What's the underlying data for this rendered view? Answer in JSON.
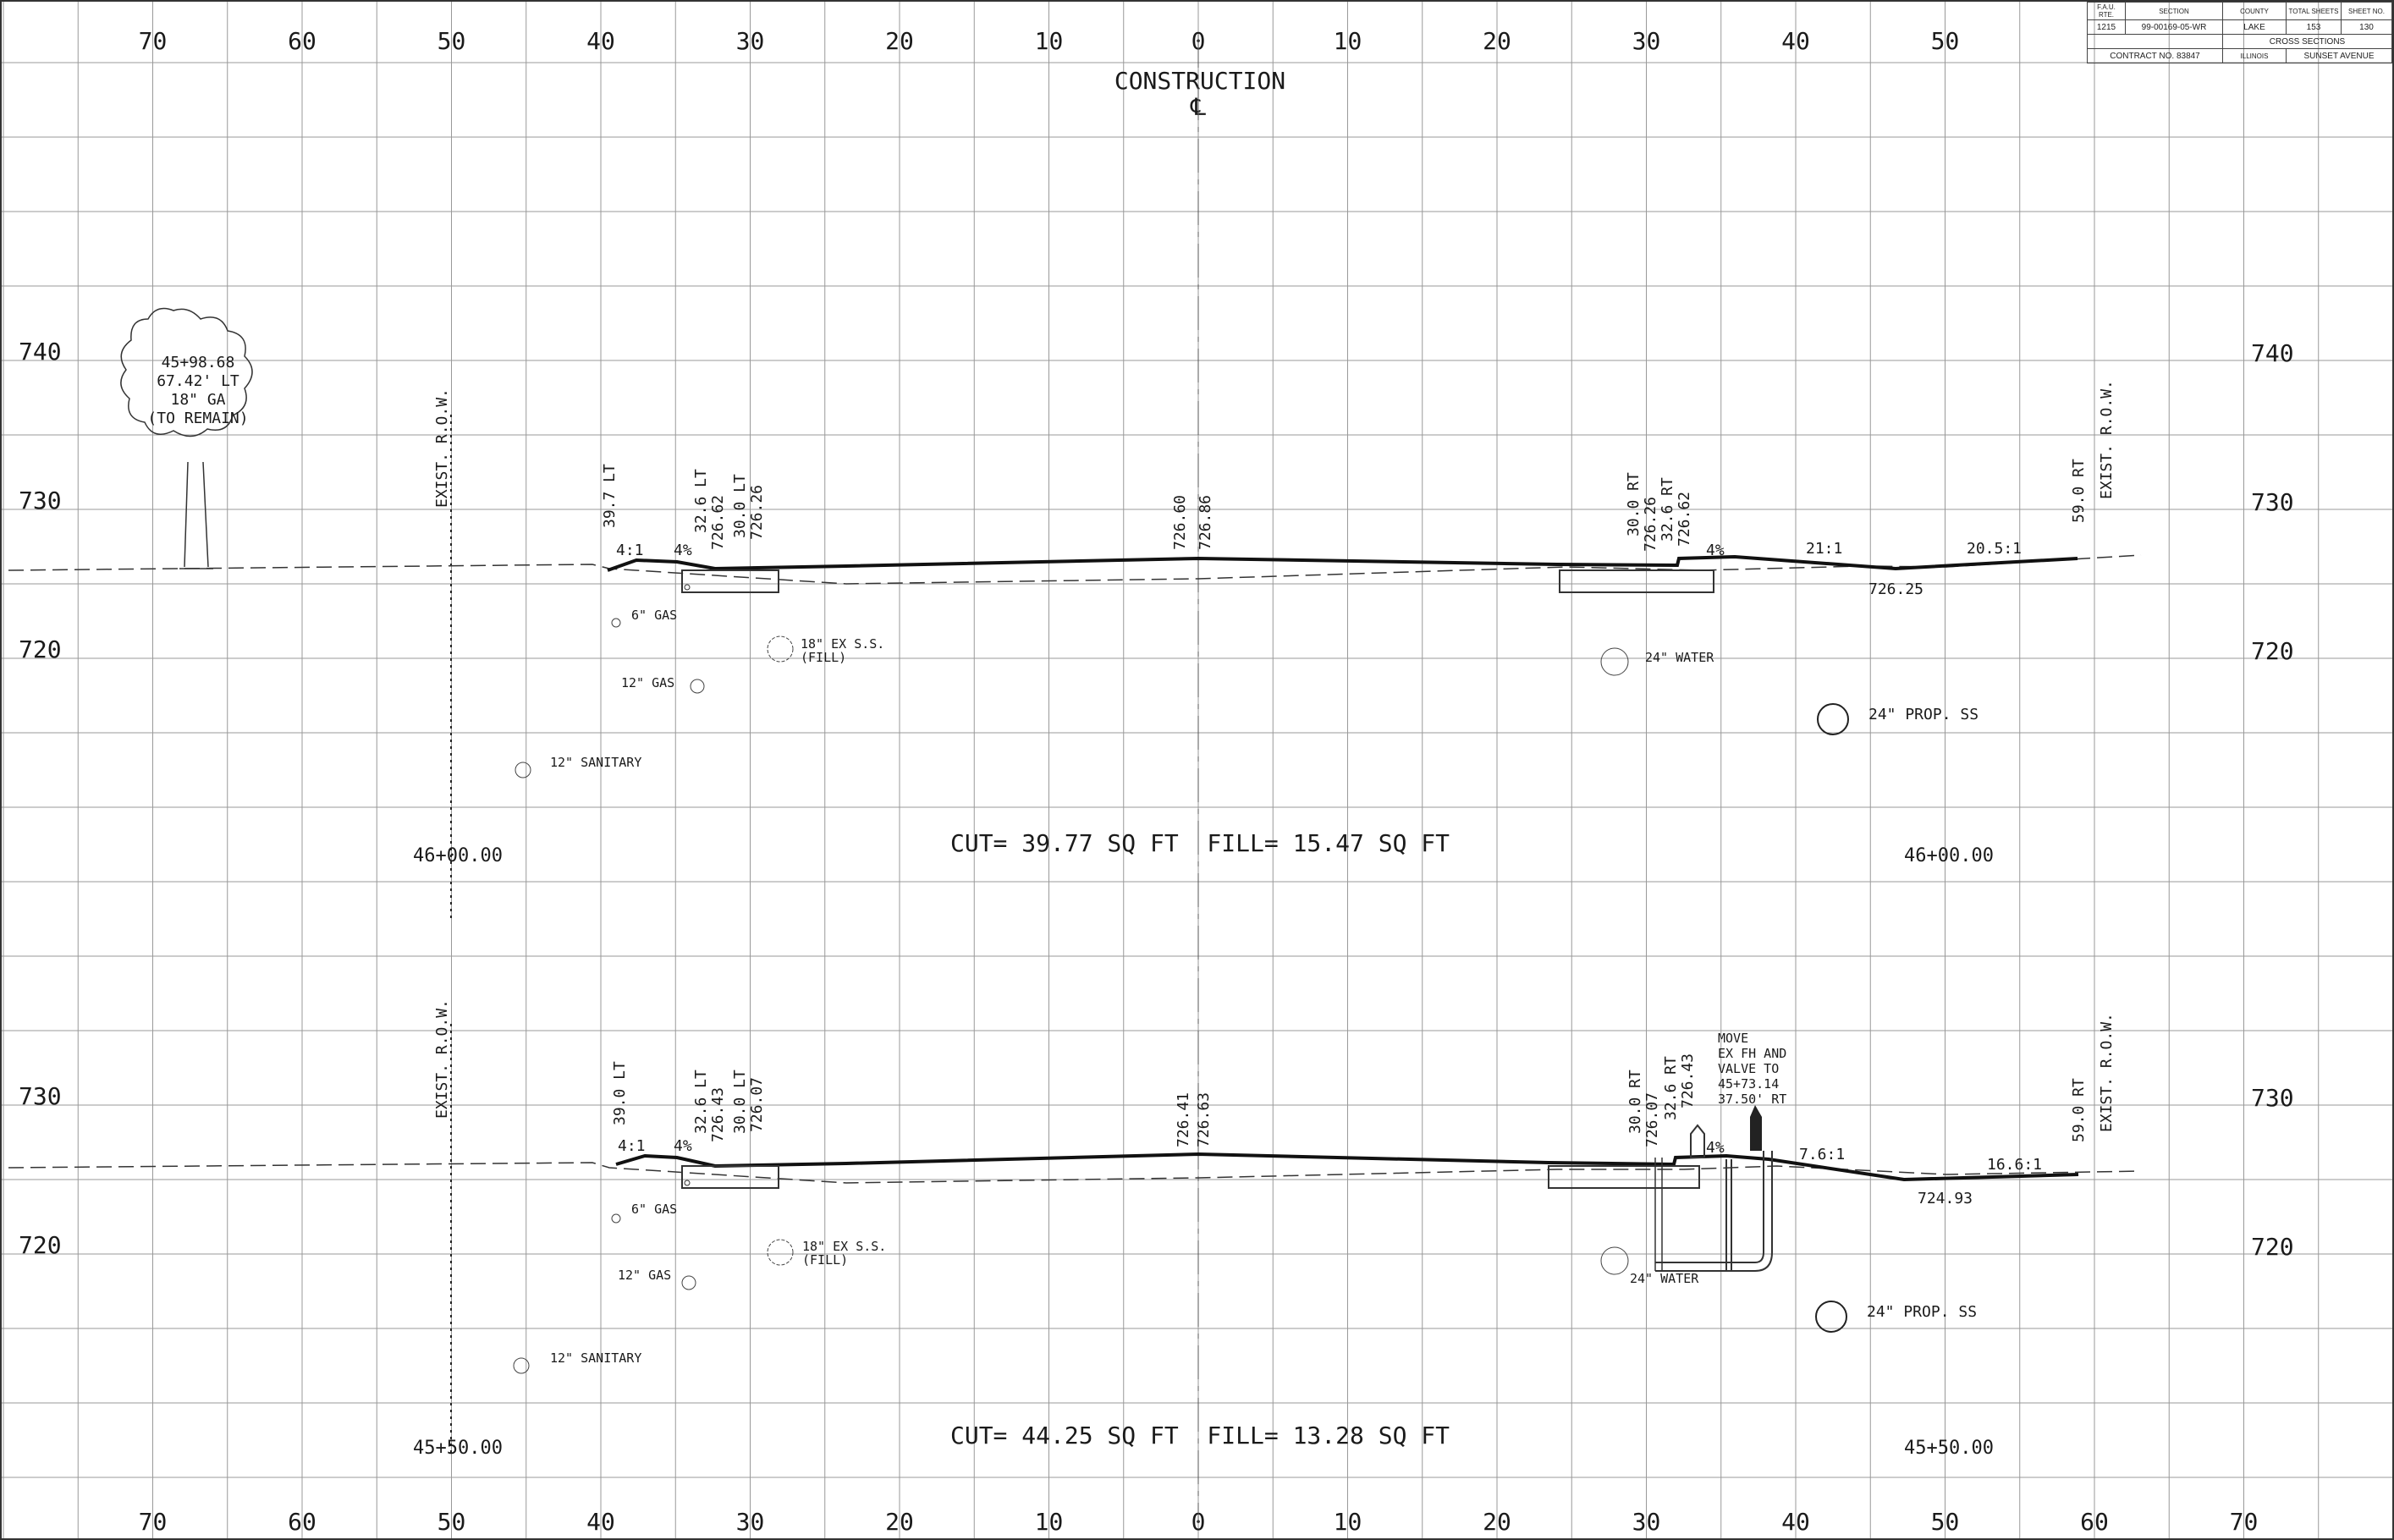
{
  "title_block": {
    "headers": {
      "fai_rte": "F.A.U. RTE.",
      "section": "SECTION",
      "county": "COUNTY",
      "total_sheets": "TOTAL SHEETS",
      "sheet_no": "SHEET NO."
    },
    "values": {
      "fai_rte": "1215",
      "section": "99-00169-05-WR",
      "county": "LAKE",
      "total_sheets": "153",
      "sheet_no": "130"
    },
    "sheet_title": "CROSS SECTIONS",
    "contract": "CONTRACT NO. 83847",
    "state": "ILLINOIS",
    "street": "SUNSET AVENUE"
  },
  "construction_label": "CONSTRUCTION",
  "centerline_symbol": "℄",
  "offset_ticks_top": [
    "70",
    "60",
    "50",
    "40",
    "30",
    "20",
    "10",
    "0",
    "10",
    "20",
    "30",
    "40",
    "50"
  ],
  "offset_ticks_bottom": [
    "70",
    "60",
    "50",
    "40",
    "30",
    "20",
    "10",
    "0",
    "10",
    "20",
    "30",
    "40",
    "50",
    "60",
    "70"
  ],
  "elev_top_left": [
    "740",
    "730",
    "720"
  ],
  "elev_top_right": [
    "740",
    "730",
    "720"
  ],
  "elev_bottom_left": [
    "730",
    "720"
  ],
  "elev_bottom_right": [
    "730",
    "720"
  ],
  "tree": {
    "station": "45+98.68",
    "offset": "67.42' LT",
    "size": "18\" GA",
    "note": "(TO REMAIN)"
  },
  "section_top": {
    "station": "46+00.00",
    "quantities": "CUT= 39.77 SQ FT  FILL= 15.47 SQ FT",
    "row_label": "EXIST. R.O.W.",
    "labels": {
      "left_39": "39.7 LT",
      "left_326": "32.6 LT",
      "left_326_elev": "726.62",
      "left_30": "30.0 LT",
      "left_30_elev": "726.26",
      "center_elev1": "726.60",
      "center_elev2": "726.86",
      "right_30": "30.0 RT",
      "right_30_elev": "726.26",
      "right_326": "32.6 RT",
      "right_326_elev": "726.62",
      "right_59": "59.0 RT",
      "slope_left": "4:1",
      "pct_left": "4%",
      "pct_right": "4%",
      "slope_r1": "21:1",
      "slope_r2": "20.5:1",
      "low_elev": "726.25"
    },
    "utilities": {
      "gas6": "6\" GAS",
      "gas12": "12\" GAS",
      "sanitary": "12\" SANITARY",
      "sewer1": "18\" EX S.S.",
      "sewer2": "(FILL)",
      "water": "24\" WATER",
      "prop_ss": "24\" PROP. SS"
    }
  },
  "section_bottom": {
    "station": "45+50.00",
    "quantities": "CUT= 44.25 SQ FT  FILL= 13.28 SQ FT",
    "row_label": "EXIST. R.O.W.",
    "labels": {
      "left_39": "39.0 LT",
      "left_326": "32.6 LT",
      "left_326_elev": "726.43",
      "left_30": "30.0 LT",
      "left_30_elev": "726.07",
      "center_elev1": "726.41",
      "center_elev2": "726.63",
      "right_30": "30.0 RT",
      "right_30_elev": "726.07",
      "right_326": "32.6 RT",
      "right_326_elev": "726.43",
      "right_59": "59.0 RT",
      "slope_left": "4:1",
      "pct_left": "4%",
      "pct_right": "4%",
      "slope_r1": "7.6:1",
      "slope_r2": "16.6:1",
      "low_elev": "724.93"
    },
    "hydrant_note": [
      "MOVE",
      "EX FH AND",
      "VALVE TO",
      "45+73.14",
      "37.50' RT"
    ],
    "utilities": {
      "gas6": "6\" GAS",
      "gas12": "12\" GAS",
      "sanitary": "12\" SANITARY",
      "sewer1": "18\" EX S.S.",
      "sewer2": "(FILL)",
      "water": "24\" WATER",
      "prop_ss": "24\" PROP. SS"
    }
  }
}
